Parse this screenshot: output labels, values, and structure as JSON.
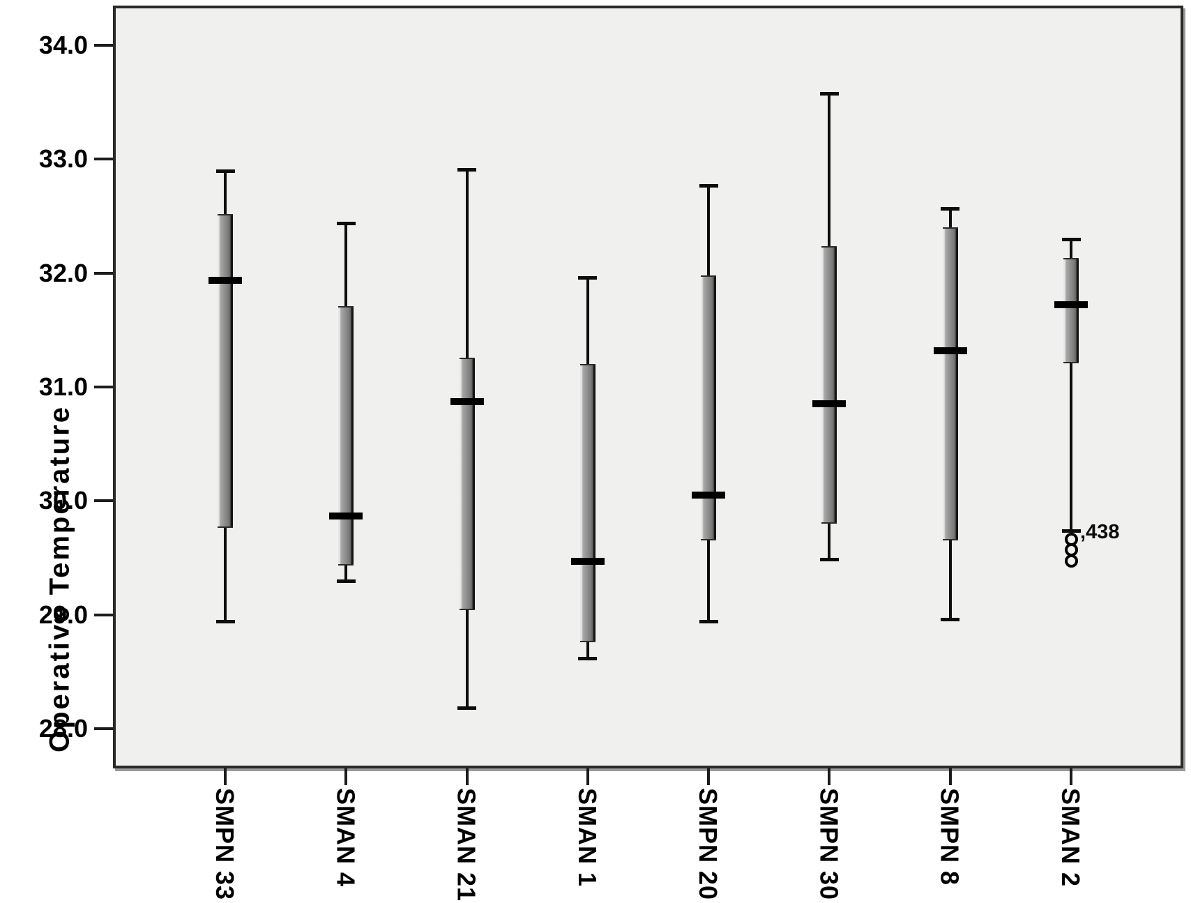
{
  "figure": {
    "background": "#ffffff",
    "plot_background": "#f0f0ee",
    "frame_color": "#2a2a2a",
    "frame_shadow_color": "#9a9a9a",
    "box_edge_dark": "#151515",
    "box_fill_mid": "#8c8c8c",
    "median_color": "#000000"
  },
  "y_axis": {
    "title": "Operative Temperature"
  },
  "annotation": {
    "outlier_label": ",438"
  },
  "chart_data": {
    "type": "boxplot",
    "title": "",
    "xlabel": "",
    "ylabel": "Operative Temperature",
    "ylim": [
      27.65,
      34.35
    ],
    "grid": false,
    "legend": null,
    "yticks": {
      "values": [
        34,
        33,
        32,
        31,
        30,
        29,
        28
      ],
      "labels": [
        "34.0",
        "33.0",
        "32.0",
        "31.0",
        "30.0",
        "29.0",
        "28.0"
      ]
    },
    "categories": [
      "SMPN 33",
      "SMAN 4",
      "SMAN 21",
      "SMAN 1",
      "SMPN 20",
      "SMPN 30",
      "SMPN 8",
      "SMAN 2"
    ],
    "boxes": [
      {
        "school": "SMPN 33",
        "whisker_low": 28.94,
        "q1": 29.76,
        "median": 31.94,
        "q3": 32.52,
        "whisker_high": 32.9,
        "outliers": []
      },
      {
        "school": "SMAN 4",
        "whisker_low": 29.3,
        "q1": 29.43,
        "median": 29.87,
        "q3": 31.71,
        "whisker_high": 32.44,
        "outliers": []
      },
      {
        "school": "SMAN 21",
        "whisker_low": 28.18,
        "q1": 29.04,
        "median": 30.87,
        "q3": 31.26,
        "whisker_high": 32.91,
        "outliers": []
      },
      {
        "school": "SMAN 1",
        "whisker_low": 28.62,
        "q1": 28.76,
        "median": 29.47,
        "q3": 31.2,
        "whisker_high": 31.96,
        "outliers": []
      },
      {
        "school": "SMPN 20",
        "whisker_low": 28.94,
        "q1": 29.65,
        "median": 30.05,
        "q3": 31.98,
        "whisker_high": 32.77,
        "outliers": []
      },
      {
        "school": "SMPN 30",
        "whisker_low": 29.49,
        "q1": 29.8,
        "median": 30.85,
        "q3": 32.24,
        "whisker_high": 33.58,
        "outliers": []
      },
      {
        "school": "SMPN 8",
        "whisker_low": 28.96,
        "q1": 29.65,
        "median": 31.32,
        "q3": 32.4,
        "whisker_high": 32.57,
        "outliers": []
      },
      {
        "school": "SMAN 2",
        "whisker_low": 29.74,
        "q1": 31.21,
        "median": 31.72,
        "q3": 32.13,
        "whisker_high": 32.3,
        "outliers": [
          29.66,
          29.57,
          29.47
        ],
        "outlier_label": ",438",
        "outlier_label_value": 29.66
      }
    ]
  }
}
